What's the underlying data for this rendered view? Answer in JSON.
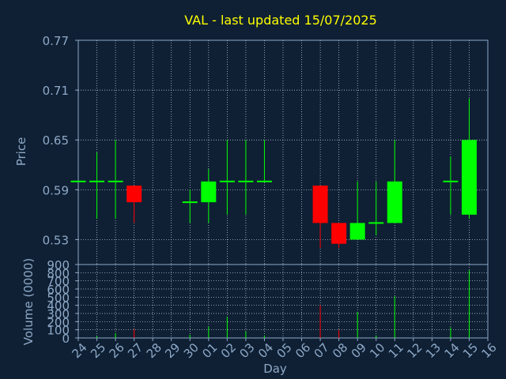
{
  "colors": {
    "background": "#0f2034",
    "frame": "#8ea9c7",
    "grid": "#cfd8e3",
    "text": "#8ea9c7",
    "title": "#ffff00",
    "up": "#00ff00",
    "down": "#ff0000"
  },
  "chart_data": [
    {
      "type": "candlestick",
      "title": "VAL - last updated 15/07/2025",
      "xlabel": "Day",
      "ylabel": "Price",
      "ylim": [
        0.5,
        0.77
      ],
      "yticks": [
        "0.77",
        "0.71",
        "0.65",
        "0.59",
        "0.53"
      ],
      "grid": true,
      "categories": [
        "24",
        "25",
        "26",
        "27",
        "28",
        "29",
        "30",
        "01",
        "02",
        "03",
        "04",
        "05",
        "06",
        "07",
        "08",
        "09",
        "10",
        "11",
        "12",
        "13",
        "14",
        "15",
        "16"
      ],
      "candles": [
        {
          "day": "24",
          "open": 0.6,
          "high": 0.6,
          "low": 0.6,
          "close": 0.6
        },
        {
          "day": "25",
          "open": 0.6,
          "high": 0.635,
          "low": 0.555,
          "close": 0.6
        },
        {
          "day": "26",
          "open": 0.6,
          "high": 0.65,
          "low": 0.555,
          "close": 0.6
        },
        {
          "day": "27",
          "open": 0.595,
          "high": 0.595,
          "low": 0.55,
          "close": 0.575
        },
        {
          "day": "30",
          "open": 0.575,
          "high": 0.59,
          "low": 0.55,
          "close": 0.575
        },
        {
          "day": "01",
          "open": 0.575,
          "high": 0.615,
          "low": 0.55,
          "close": 0.6
        },
        {
          "day": "02",
          "open": 0.6,
          "high": 0.65,
          "low": 0.56,
          "close": 0.6
        },
        {
          "day": "03",
          "open": 0.6,
          "high": 0.65,
          "low": 0.56,
          "close": 0.6
        },
        {
          "day": "04",
          "open": 0.6,
          "high": 0.65,
          "low": 0.6,
          "close": 0.6
        },
        {
          "day": "07",
          "open": 0.595,
          "high": 0.595,
          "low": 0.52,
          "close": 0.55
        },
        {
          "day": "08",
          "open": 0.55,
          "high": 0.55,
          "low": 0.52,
          "close": 0.525
        },
        {
          "day": "09",
          "open": 0.53,
          "high": 0.6,
          "low": 0.53,
          "close": 0.55
        },
        {
          "day": "10",
          "open": 0.55,
          "high": 0.6,
          "low": 0.535,
          "close": 0.55
        },
        {
          "day": "11",
          "open": 0.55,
          "high": 0.65,
          "low": 0.55,
          "close": 0.6
        },
        {
          "day": "14",
          "open": 0.6,
          "high": 0.63,
          "low": 0.56,
          "close": 0.6
        },
        {
          "day": "15",
          "open": 0.56,
          "high": 0.7,
          "low": 0.555,
          "close": 0.65
        }
      ]
    },
    {
      "type": "bar",
      "xlabel": "Day",
      "ylabel": "Volume (0000)",
      "ylim": [
        0,
        900
      ],
      "yticks": [
        "900",
        "800",
        "700",
        "600",
        "500",
        "400",
        "300",
        "200",
        "100",
        "0"
      ],
      "grid": true,
      "categories": [
        "24",
        "25",
        "26",
        "27",
        "28",
        "29",
        "30",
        "01",
        "02",
        "03",
        "04",
        "05",
        "06",
        "07",
        "08",
        "09",
        "10",
        "11",
        "12",
        "13",
        "14",
        "15",
        "16"
      ],
      "values": [
        0,
        20,
        60,
        110,
        0,
        0,
        40,
        140,
        260,
        80,
        30,
        0,
        0,
        400,
        100,
        320,
        30,
        510,
        0,
        0,
        130,
        830,
        0
      ],
      "colors_by_day": [
        "#00ff00",
        "#00ff00",
        "#00ff00",
        "#ff0000",
        "#00ff00",
        "#00ff00",
        "#00ff00",
        "#00ff00",
        "#00ff00",
        "#00ff00",
        "#00ff00",
        "#00ff00",
        "#00ff00",
        "#ff0000",
        "#ff0000",
        "#00ff00",
        "#00ff00",
        "#00ff00",
        "#00ff00",
        "#00ff00",
        "#00ff00",
        "#00ff00",
        "#00ff00"
      ]
    }
  ]
}
